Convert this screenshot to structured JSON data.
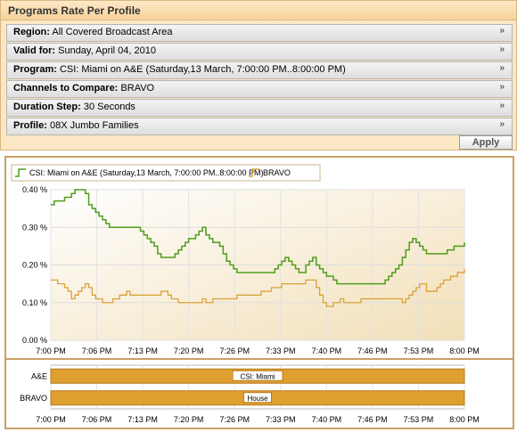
{
  "panel": {
    "title": "Programs Rate Per Profile",
    "filters": [
      {
        "label": "Region:",
        "value": " All Covered Broadcast Area"
      },
      {
        "label": "Valid for:",
        "value": " Sunday, April 04, 2010"
      },
      {
        "label": "Program:",
        "value": " CSI: Miami on A&E (Saturday,13 March, 7:00:00 PM..8:00:00 PM)"
      },
      {
        "label": "Channels to Compare:",
        "value": " BRAVO"
      },
      {
        "label": "Duration Step:",
        "value": " 30 Seconds"
      },
      {
        "label": "Profile:",
        "value": " 08X Jumbo Families"
      }
    ],
    "apply_label": "Apply",
    "expand_glyph": "»"
  },
  "colors": {
    "series1": "#4f9d1c",
    "series2": "#d9a23a",
    "bar": "#e0a030",
    "frame": "#c8a166"
  },
  "chart_data": [
    {
      "type": "line",
      "legend": [
        "CSI: Miami on A&E (Saturday,13 March, 7:00:00 PM..8:00:00 PM)",
        "BRAVO"
      ],
      "legend_position": "top-left",
      "x_ticks": [
        "7:00 PM",
        "7:06 PM",
        "7:13 PM",
        "7:20 PM",
        "7:26 PM",
        "7:33 PM",
        "7:40 PM",
        "7:46 PM",
        "7:53 PM",
        "8:00 PM"
      ],
      "y_ticks": [
        "0.00 %",
        "0.10 %",
        "0.20 %",
        "0.30 %",
        "0.40 %"
      ],
      "ylim": [
        0,
        0.4
      ],
      "grid": true,
      "x_minutes": [
        0,
        0.5,
        1,
        1.5,
        2,
        2.5,
        3,
        3.5,
        4,
        4.5,
        5,
        5.5,
        6,
        6.5,
        7,
        7.5,
        8,
        8.5,
        9,
        9.5,
        10,
        10.5,
        11,
        11.5,
        12,
        12.5,
        13,
        13.5,
        14,
        14.5,
        15,
        15.5,
        16,
        16.5,
        17,
        17.5,
        18,
        18.5,
        19,
        19.5,
        20,
        20.5,
        21,
        21.5,
        22,
        22.5,
        23,
        23.5,
        24,
        24.5,
        25,
        25.5,
        26,
        26.5,
        27,
        27.5,
        28,
        28.5,
        29,
        29.5,
        30,
        30.5,
        31,
        31.5,
        32,
        32.5,
        33,
        33.5,
        34,
        34.5,
        35,
        35.5,
        36,
        36.5,
        37,
        37.5,
        38,
        38.5,
        39,
        39.5,
        40,
        40.5,
        41,
        41.5,
        42,
        42.5,
        43,
        43.5,
        44,
        44.5,
        45,
        45.5,
        46,
        46.5,
        47,
        47.5,
        48,
        48.5,
        49,
        49.5,
        50,
        50.5,
        51,
        51.5,
        52,
        52.5,
        53,
        53.5,
        54,
        54.5,
        55,
        55.5,
        56,
        56.5,
        57,
        57.5,
        58,
        58.5,
        59,
        59.5,
        60
      ],
      "series": [
        {
          "name": "CSI: Miami on A&E (Saturday,13 March, 7:00:00 PM..8:00:00 PM)",
          "values": [
            0.36,
            0.37,
            0.37,
            0.37,
            0.38,
            0.38,
            0.39,
            0.4,
            0.4,
            0.4,
            0.39,
            0.36,
            0.35,
            0.34,
            0.33,
            0.32,
            0.31,
            0.3,
            0.3,
            0.3,
            0.3,
            0.3,
            0.3,
            0.3,
            0.3,
            0.3,
            0.29,
            0.28,
            0.27,
            0.26,
            0.25,
            0.23,
            0.22,
            0.22,
            0.22,
            0.22,
            0.23,
            0.24,
            0.25,
            0.26,
            0.27,
            0.27,
            0.28,
            0.29,
            0.3,
            0.28,
            0.27,
            0.26,
            0.26,
            0.25,
            0.23,
            0.21,
            0.2,
            0.19,
            0.18,
            0.18,
            0.18,
            0.18,
            0.18,
            0.18,
            0.18,
            0.18,
            0.18,
            0.18,
            0.18,
            0.19,
            0.2,
            0.21,
            0.22,
            0.21,
            0.2,
            0.19,
            0.18,
            0.18,
            0.2,
            0.21,
            0.22,
            0.2,
            0.19,
            0.18,
            0.17,
            0.17,
            0.16,
            0.15,
            0.15,
            0.15,
            0.15,
            0.15,
            0.15,
            0.15,
            0.15,
            0.15,
            0.15,
            0.15,
            0.15,
            0.15,
            0.15,
            0.16,
            0.17,
            0.18,
            0.19,
            0.2,
            0.22,
            0.24,
            0.26,
            0.27,
            0.26,
            0.25,
            0.24,
            0.23,
            0.23,
            0.23,
            0.23,
            0.23,
            0.23,
            0.24,
            0.24,
            0.25,
            0.25,
            0.25,
            0.26
          ]
        },
        {
          "name": "BRAVO",
          "values": [
            0.16,
            0.16,
            0.15,
            0.15,
            0.14,
            0.13,
            0.11,
            0.12,
            0.13,
            0.14,
            0.15,
            0.14,
            0.12,
            0.11,
            0.11,
            0.1,
            0.1,
            0.1,
            0.11,
            0.11,
            0.12,
            0.12,
            0.13,
            0.12,
            0.12,
            0.12,
            0.12,
            0.12,
            0.12,
            0.12,
            0.12,
            0.12,
            0.13,
            0.13,
            0.12,
            0.11,
            0.11,
            0.1,
            0.1,
            0.1,
            0.1,
            0.1,
            0.1,
            0.1,
            0.11,
            0.1,
            0.1,
            0.11,
            0.11,
            0.11,
            0.11,
            0.11,
            0.11,
            0.11,
            0.12,
            0.12,
            0.12,
            0.12,
            0.12,
            0.12,
            0.12,
            0.13,
            0.13,
            0.13,
            0.14,
            0.14,
            0.14,
            0.15,
            0.15,
            0.15,
            0.15,
            0.15,
            0.15,
            0.15,
            0.16,
            0.16,
            0.16,
            0.14,
            0.12,
            0.1,
            0.09,
            0.09,
            0.1,
            0.1,
            0.11,
            0.1,
            0.1,
            0.1,
            0.1,
            0.1,
            0.11,
            0.11,
            0.11,
            0.11,
            0.11,
            0.11,
            0.11,
            0.11,
            0.11,
            0.11,
            0.11,
            0.11,
            0.1,
            0.11,
            0.12,
            0.13,
            0.14,
            0.15,
            0.15,
            0.13,
            0.13,
            0.13,
            0.14,
            0.15,
            0.16,
            0.16,
            0.17,
            0.17,
            0.18,
            0.18,
            0.19
          ]
        }
      ]
    },
    {
      "type": "bar",
      "orientation": "horizontal",
      "categories": [
        "A&E",
        "BRAVO"
      ],
      "x_ticks": [
        "7:00 PM",
        "7:06 PM",
        "7:13 PM",
        "7:20 PM",
        "7:26 PM",
        "7:33 PM",
        "7:40 PM",
        "7:46 PM",
        "7:53 PM",
        "8:00 PM"
      ],
      "bars": [
        {
          "category": "A&E",
          "start": "7:00 PM",
          "end": "8:00 PM",
          "label": "CSI: Miami"
        },
        {
          "category": "BRAVO",
          "start": "7:00 PM",
          "end": "8:00 PM",
          "label": "House"
        }
      ]
    }
  ]
}
